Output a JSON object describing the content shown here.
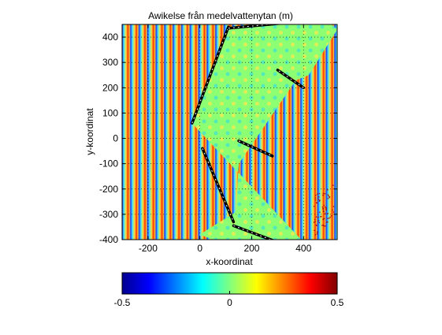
{
  "chart_data": {
    "type": "heatmap",
    "title": "Awikelse från medelvattenytan (m)",
    "xlabel": "x-koordinat",
    "ylabel": "y-koordinat",
    "xlim": [
      -300,
      530
    ],
    "ylim": [
      -400,
      450
    ],
    "xticks": [
      -200,
      0,
      200,
      400
    ],
    "yticks": [
      400,
      300,
      200,
      100,
      0,
      -100,
      -200,
      -300,
      -400
    ],
    "grid": "dotted",
    "colormap": "jet",
    "colorbar": {
      "location": "bottom",
      "clim": [
        -0.5,
        0.5
      ],
      "ticks": [
        -0.5,
        0,
        0.5
      ],
      "tick_labels": [
        "-0.5",
        "0",
        "0.5"
      ]
    },
    "harbour_outline": [
      [
        -30,
        60
      ],
      [
        110,
        440
      ],
      [
        480,
        475
      ],
      [
        530,
        430
      ],
      [
        420,
        250
      ],
      [
        370,
        230
      ],
      [
        150,
        -100
      ],
      [
        140,
        -290
      ],
      [
        0,
        -380
      ],
      [
        130,
        -430
      ],
      [
        400,
        -410
      ]
    ],
    "breakwaters": [
      {
        "x": [
          -30,
          110
        ],
        "y": [
          60,
          440
        ]
      },
      {
        "x": [
          110,
          530
        ],
        "y": [
          435,
          475
        ]
      },
      {
        "x": [
          400,
          300
        ],
        "y": [
          200,
          270
        ]
      },
      {
        "x": [
          150,
          280
        ],
        "y": [
          -10,
          -70
        ]
      },
      {
        "x": [
          10,
          130
        ],
        "y": [
          -40,
          -330
        ]
      },
      {
        "x": [
          130,
          300
        ],
        "y": [
          -345,
          -410
        ]
      }
    ]
  }
}
